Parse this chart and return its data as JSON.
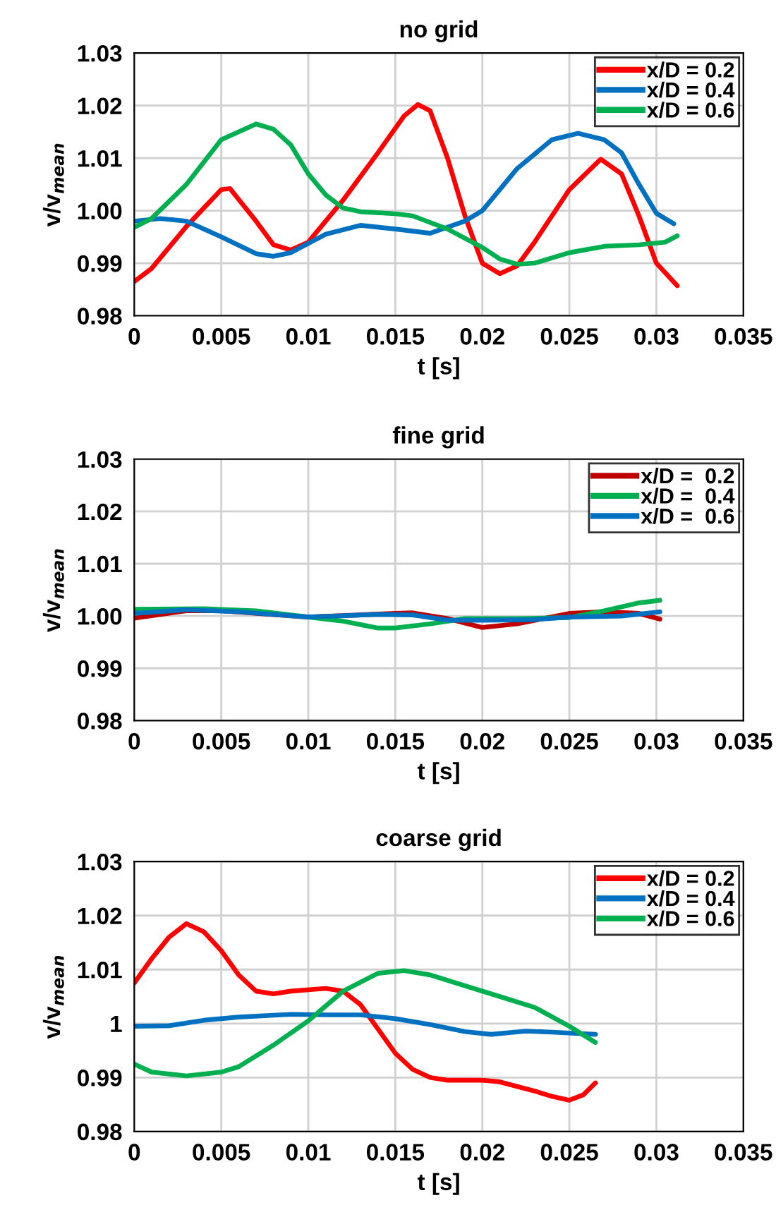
{
  "chart_data": [
    {
      "type": "line",
      "title": "no grid",
      "xlabel": "t [s]",
      "ylabel": "v/v$_{mean}$",
      "grid": true,
      "legend": "top right",
      "xlim": [
        0,
        0.035
      ],
      "xticks": [
        0,
        0.005,
        0.01,
        0.015,
        0.02,
        0.025,
        0.03,
        0.035
      ],
      "ylim": [
        0.98,
        1.03
      ],
      "yticks": [
        0.98,
        0.99,
        {
          "value": 1,
          "label": "1.00"
        },
        1.01,
        1.02,
        1.03
      ],
      "series": [
        {
          "name": "x/D = 0.2",
          "color": "#ff0000",
          "x": [
            0,
            0.001,
            0.003,
            0.005,
            0.0055,
            0.007,
            0.008,
            0.009,
            0.01,
            0.012,
            0.014,
            0.0155,
            0.0163,
            0.017,
            0.018,
            0.019,
            0.02,
            0.021,
            0.022,
            0.023,
            0.025,
            0.0268,
            0.028,
            0.029,
            0.03,
            0.0312
          ],
          "values": [
            0.9865,
            0.989,
            0.997,
            1.004,
            1.0042,
            0.998,
            0.9935,
            0.9925,
            0.994,
            1.002,
            1.011,
            1.018,
            1.0202,
            1.019,
            1.01,
            0.999,
            0.99,
            0.988,
            0.9895,
            0.994,
            1.004,
            1.0098,
            1.007,
            0.999,
            0.99,
            0.9857
          ]
        },
        {
          "name": "x/D = 0.4",
          "color": "#0070c0",
          "x": [
            0,
            0.0015,
            0.003,
            0.005,
            0.007,
            0.008,
            0.009,
            0.011,
            0.013,
            0.015,
            0.017,
            0.019,
            0.02,
            0.022,
            0.024,
            0.0255,
            0.027,
            0.028,
            0.029,
            0.03,
            0.031
          ],
          "values": [
            0.998,
            0.9985,
            0.998,
            0.995,
            0.9918,
            0.9913,
            0.992,
            0.9955,
            0.9972,
            0.9965,
            0.9957,
            0.998,
            1.0,
            1.008,
            1.0135,
            1.0147,
            1.0135,
            1.011,
            1.005,
            0.9995,
            0.9975
          ]
        },
        {
          "name": "x/D = 0.6",
          "color": "#00b050",
          "x": [
            0,
            0.001,
            0.003,
            0.005,
            0.007,
            0.008,
            0.009,
            0.01,
            0.011,
            0.012,
            0.013,
            0.015,
            0.016,
            0.018,
            0.02,
            0.021,
            0.022,
            0.023,
            0.025,
            0.027,
            0.029,
            0.0305,
            0.0312
          ],
          "values": [
            0.9968,
            0.9985,
            1.005,
            1.0135,
            1.0165,
            1.0155,
            1.0125,
            1.007,
            1.003,
            1.0005,
            0.9998,
            0.9994,
            0.999,
            0.9965,
            0.993,
            0.9908,
            0.9898,
            0.99,
            0.992,
            0.9932,
            0.9935,
            0.994,
            0.9952
          ]
        }
      ]
    },
    {
      "type": "line",
      "title": "fine grid",
      "xlabel": "t [s]",
      "ylabel": "v/v$_{mean}$",
      "grid": true,
      "legend": "top right",
      "xlim": [
        0,
        0.035
      ],
      "xticks": [
        0,
        0.005,
        0.01,
        0.015,
        0.02,
        0.025,
        0.03,
        0.035
      ],
      "ylim": [
        0.98,
        1.03
      ],
      "yticks": [
        0.98,
        0.99,
        {
          "value": 1,
          "label": "1.00"
        },
        1.01,
        1.02,
        1.03
      ],
      "series": [
        {
          "name": "x/D =  0.2",
          "color": "#c00000",
          "x": [
            0,
            0.003,
            0.005,
            0.01,
            0.015,
            0.016,
            0.018,
            0.02,
            0.022,
            0.025,
            0.027,
            0.029,
            0.0302
          ],
          "values": [
            0.9996,
            1.001,
            1.001,
            0.9998,
            1.0005,
            1.0006,
            0.9995,
            0.9978,
            0.9985,
            1.0005,
            1.0008,
            1.0005,
            0.9994
          ]
        },
        {
          "name": "x/D =  0.4",
          "color": "#00b050",
          "x": [
            0,
            0.004,
            0.007,
            0.01,
            0.012,
            0.014,
            0.015,
            0.017,
            0.019,
            0.022,
            0.025,
            0.027,
            0.029,
            0.0302
          ],
          "values": [
            1.0013,
            1.0014,
            1.001,
            0.9998,
            0.999,
            0.9977,
            0.9977,
            0.9985,
            0.9995,
            0.9995,
            0.9997,
            1.001,
            1.0025,
            1.003
          ]
        },
        {
          "name": "x/D =  0.6",
          "color": "#0070c0",
          "x": [
            0,
            0.003,
            0.006,
            0.01,
            0.014,
            0.016,
            0.018,
            0.02,
            0.023,
            0.025,
            0.028,
            0.0302
          ],
          "values": [
            1.0005,
            1.0012,
            1.0008,
            0.9998,
            1.0003,
            1.0002,
            0.9992,
            0.9992,
            0.9993,
            0.9998,
            1.0,
            1.0008
          ]
        }
      ]
    },
    {
      "type": "line",
      "title": "coarse grid",
      "xlabel": "t [s]",
      "ylabel": "v/v$_{mean}$",
      "grid": true,
      "legend": "top right",
      "xlim": [
        0,
        0.035
      ],
      "xticks": [
        0,
        0.005,
        0.01,
        0.015,
        0.02,
        0.025,
        0.03,
        0.035
      ],
      "ylim": [
        0.98,
        1.03
      ],
      "yticks": [
        0.98,
        0.99,
        1,
        1.01,
        1.02,
        1.03
      ],
      "series": [
        {
          "name": "x/D = 0.2",
          "color": "#ff0000",
          "x": [
            0,
            0.001,
            0.002,
            0.003,
            0.004,
            0.005,
            0.006,
            0.007,
            0.008,
            0.009,
            0.011,
            0.012,
            0.013,
            0.014,
            0.015,
            0.016,
            0.017,
            0.018,
            0.02,
            0.021,
            0.023,
            0.024,
            0.025,
            0.0258,
            0.0265
          ],
          "values": [
            1.0075,
            1.012,
            1.016,
            1.0185,
            1.017,
            1.0135,
            1.009,
            1.006,
            1.0055,
            1.006,
            1.0065,
            1.006,
            1.0035,
            0.999,
            0.9945,
            0.9915,
            0.99,
            0.9895,
            0.9895,
            0.9892,
            0.9875,
            0.9865,
            0.9858,
            0.9868,
            0.989
          ]
        },
        {
          "name": "x/D = 0.4",
          "color": "#0070c0",
          "x": [
            0,
            0.002,
            0.004,
            0.006,
            0.009,
            0.011,
            0.013,
            0.015,
            0.017,
            0.019,
            0.0205,
            0.0225,
            0.024,
            0.0265
          ],
          "values": [
            0.9995,
            0.9996,
            1.0006,
            1.0012,
            1.0017,
            1.0016,
            1.0016,
            1.0009,
            0.9998,
            0.9985,
            0.998,
            0.9986,
            0.9984,
            0.998
          ]
        },
        {
          "name": "x/D = 0.6",
          "color": "#00b050",
          "x": [
            0,
            0.001,
            0.003,
            0.005,
            0.006,
            0.008,
            0.01,
            0.012,
            0.014,
            0.0155,
            0.017,
            0.019,
            0.021,
            0.023,
            0.025,
            0.0265
          ],
          "values": [
            0.9925,
            0.991,
            0.9903,
            0.991,
            0.992,
            0.996,
            1.0005,
            1.006,
            1.0093,
            1.0098,
            1.009,
            1.007,
            1.005,
            1.003,
            0.9995,
            0.9965
          ]
        }
      ]
    }
  ]
}
